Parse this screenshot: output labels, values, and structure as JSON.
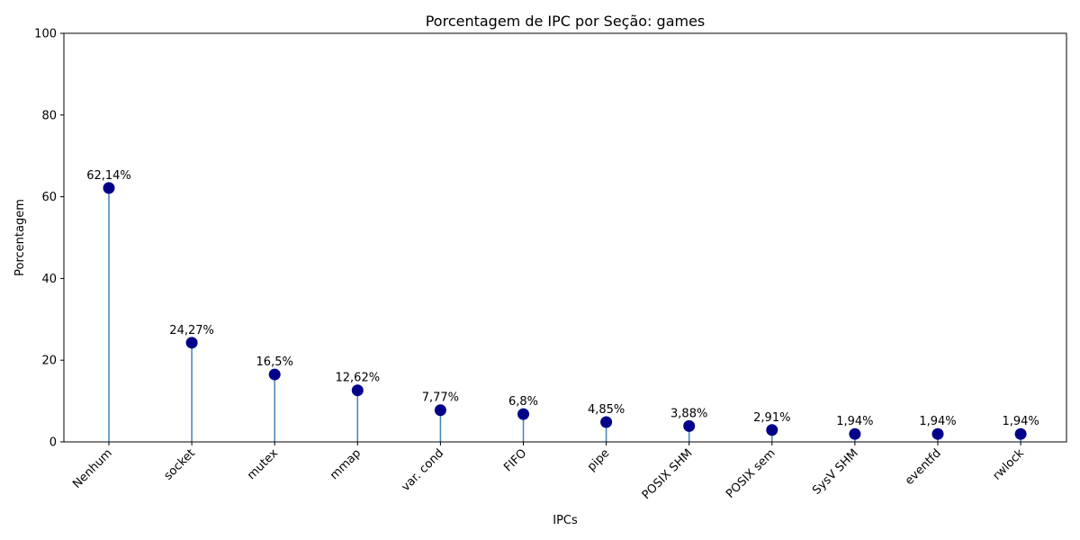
{
  "chart_data": {
    "type": "lollipop",
    "title": "Porcentagem de IPC por Seção: games",
    "xlabel": "IPCs",
    "ylabel": "Porcentagem",
    "ylim": [
      0,
      100
    ],
    "yticks": [
      "0",
      "20",
      "40",
      "60",
      "80",
      "100"
    ],
    "grid": false,
    "categories": [
      "Nenhum",
      "socket",
      "mutex",
      "mmap",
      "var. cond",
      "FIFO",
      "pipe",
      "POSIX SHM",
      "POSIX sem",
      "SysV SHM",
      "eventfd",
      "rwlock"
    ],
    "values": [
      62.14,
      24.27,
      16.5,
      12.62,
      7.77,
      6.8,
      4.85,
      3.88,
      2.91,
      1.94,
      1.94,
      1.94
    ],
    "data_labels": [
      "62,14%",
      "24,27%",
      "16,5%",
      "12,62%",
      "7,77%",
      "6,8%",
      "4,85%",
      "3,88%",
      "2,91%",
      "1,94%",
      "1,94%",
      "1,94%"
    ],
    "colors": {
      "stem": "#4682b4",
      "marker": "#00008b",
      "axes": "#000000"
    }
  }
}
